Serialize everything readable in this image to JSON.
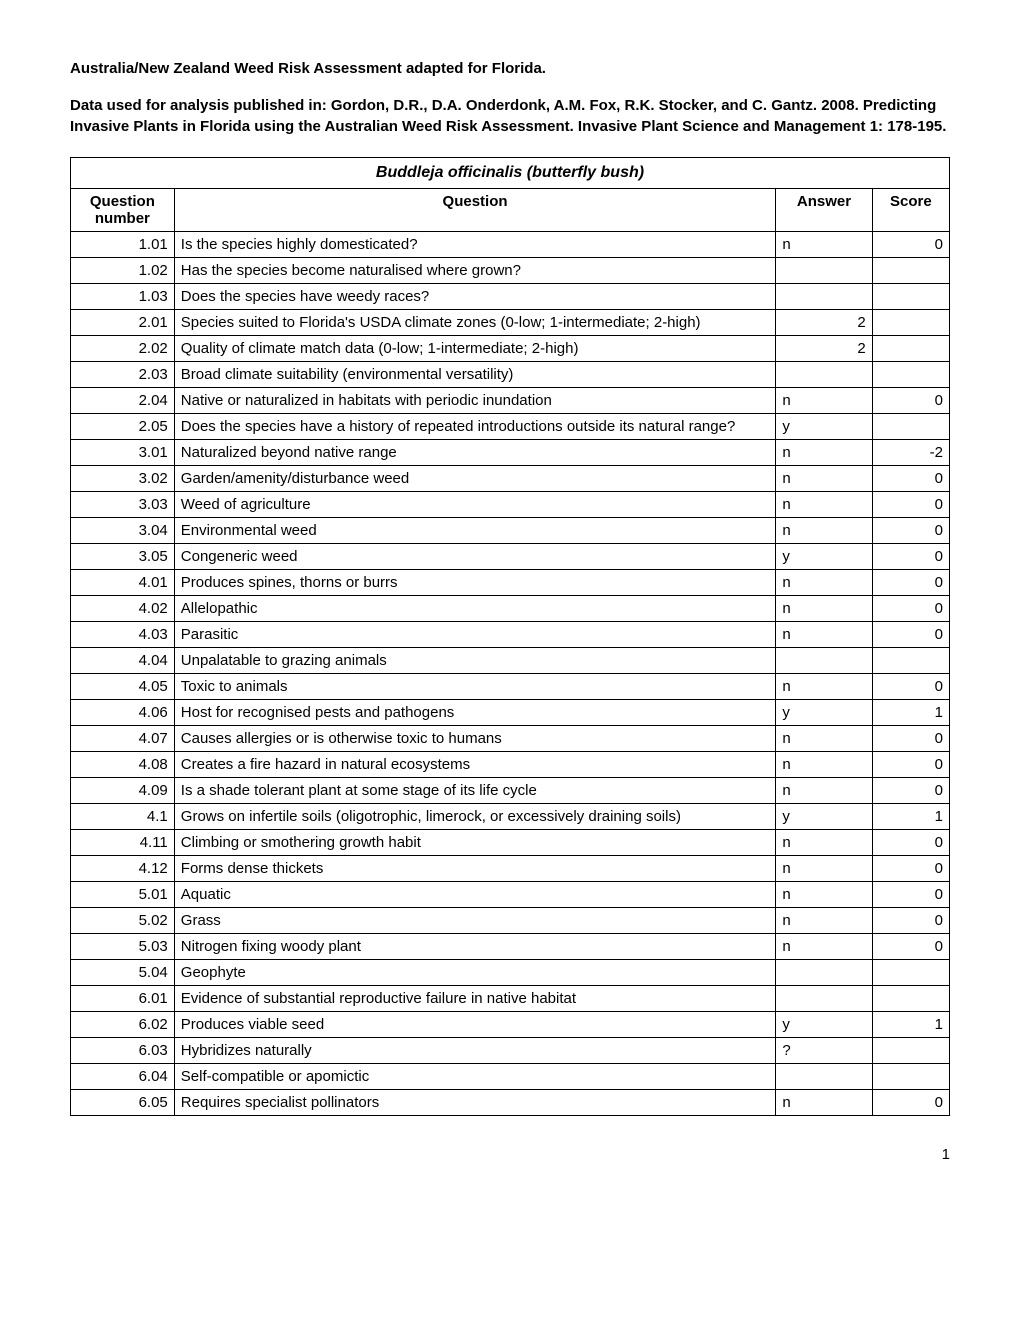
{
  "heading": "Australia/New Zealand Weed Risk Assessment adapted for Florida.",
  "subheading": "Data used for analysis published in:  Gordon, D.R., D.A. Onderdonk, A.M. Fox, R.K. Stocker, and C. Gantz. 2008. Predicting Invasive Plants in Florida using the Australian Weed Risk Assessment. Invasive Plant Science and Management 1: 178-195.",
  "table": {
    "title": "Buddleja officinalis (butterfly bush)",
    "columns": [
      "Question number",
      "Question",
      "Answer",
      "Score"
    ],
    "rows": [
      {
        "num": "1.01",
        "question": "Is the species highly domesticated?",
        "answer": "n",
        "score": "0"
      },
      {
        "num": "1.02",
        "question": "Has the species become naturalised where grown?",
        "answer": "",
        "score": ""
      },
      {
        "num": "1.03",
        "question": "Does the species have weedy races?",
        "answer": "",
        "score": ""
      },
      {
        "num": "2.01",
        "question": "Species suited to Florida's USDA climate zones (0-low; 1-intermediate; 2-high)",
        "answer": "2",
        "score": "",
        "answer_align": "right"
      },
      {
        "num": "2.02",
        "question": "Quality of climate match data (0-low; 1-intermediate; 2-high)",
        "answer": "2",
        "score": "",
        "answer_align": "right"
      },
      {
        "num": "2.03",
        "question": "Broad climate suitability (environmental versatility)",
        "answer": "",
        "score": ""
      },
      {
        "num": "2.04",
        "question": "Native or naturalized in habitats with periodic inundation",
        "answer": "n",
        "score": "0"
      },
      {
        "num": "2.05",
        "question": "Does the species have a history of repeated introductions outside its natural range?",
        "answer": "y",
        "score": ""
      },
      {
        "num": "3.01",
        "question": "Naturalized beyond native range",
        "answer": "n",
        "score": "-2"
      },
      {
        "num": "3.02",
        "question": "Garden/amenity/disturbance weed",
        "answer": "n",
        "score": "0"
      },
      {
        "num": "3.03",
        "question": "Weed of agriculture",
        "answer": "n",
        "score": "0"
      },
      {
        "num": "3.04",
        "question": "Environmental weed",
        "answer": "n",
        "score": "0"
      },
      {
        "num": "3.05",
        "question": "Congeneric weed",
        "answer": "y",
        "score": "0"
      },
      {
        "num": "4.01",
        "question": "Produces spines, thorns or burrs",
        "answer": "n",
        "score": "0"
      },
      {
        "num": "4.02",
        "question": "Allelopathic",
        "answer": "n",
        "score": "0"
      },
      {
        "num": "4.03",
        "question": "Parasitic",
        "answer": "n",
        "score": "0"
      },
      {
        "num": "4.04",
        "question": "Unpalatable to grazing animals",
        "answer": "",
        "score": ""
      },
      {
        "num": "4.05",
        "question": "Toxic to animals",
        "answer": "n",
        "score": "0"
      },
      {
        "num": "4.06",
        "question": "Host for recognised pests and pathogens",
        "answer": "y",
        "score": "1"
      },
      {
        "num": "4.07",
        "question": "Causes allergies or is otherwise toxic to humans",
        "answer": "n",
        "score": "0"
      },
      {
        "num": "4.08",
        "question": "Creates a fire hazard in natural ecosystems",
        "answer": "n",
        "score": "0"
      },
      {
        "num": "4.09",
        "question": "Is a shade tolerant plant at some stage of its life cycle",
        "answer": "n",
        "score": "0"
      },
      {
        "num": "4.1",
        "question": "Grows on infertile soils (oligotrophic, limerock, or excessively draining soils)",
        "answer": "y",
        "score": "1"
      },
      {
        "num": "4.11",
        "question": "Climbing or smothering growth habit",
        "answer": "n",
        "score": "0"
      },
      {
        "num": "4.12",
        "question": "Forms dense thickets",
        "answer": "n",
        "score": "0"
      },
      {
        "num": "5.01",
        "question": "Aquatic",
        "answer": "n",
        "score": "0"
      },
      {
        "num": "5.02",
        "question": "Grass",
        "answer": "n",
        "score": "0"
      },
      {
        "num": "5.03",
        "question": "Nitrogen fixing woody plant",
        "answer": "n",
        "score": "0"
      },
      {
        "num": "5.04",
        "question": "Geophyte",
        "answer": "",
        "score": ""
      },
      {
        "num": "6.01",
        "question": "Evidence of substantial reproductive failure in native habitat",
        "answer": "",
        "score": ""
      },
      {
        "num": "6.02",
        "question": "Produces viable seed",
        "answer": "y",
        "score": "1"
      },
      {
        "num": "6.03",
        "question": "Hybridizes naturally",
        "answer": "?",
        "score": ""
      },
      {
        "num": "6.04",
        "question": "Self-compatible or apomictic",
        "answer": "",
        "score": ""
      },
      {
        "num": "6.05",
        "question": "Requires specialist pollinators",
        "answer": "n",
        "score": "0"
      }
    ]
  },
  "page_number": "1"
}
